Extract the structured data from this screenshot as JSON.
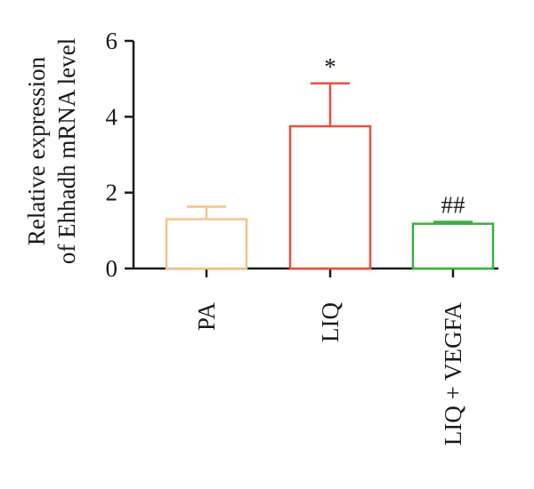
{
  "chart_data": {
    "type": "bar",
    "ylabel_lines": [
      "Relative expression",
      "of Ehhadh mRNA level"
    ],
    "ylim": [
      0,
      6
    ],
    "yticks": [
      "0",
      "2",
      "4",
      "6"
    ],
    "categories": [
      "PA",
      "LIQ",
      "LIQ + VEGFA"
    ],
    "values": [
      1.3,
      3.75,
      1.18
    ],
    "errors": [
      0.33,
      1.13,
      0.05
    ],
    "annotations": [
      "",
      "*",
      "##"
    ],
    "colors": [
      "#f5c48a",
      "#ee4d3d",
      "#3cae3e"
    ],
    "grid": false,
    "legend": "none"
  }
}
